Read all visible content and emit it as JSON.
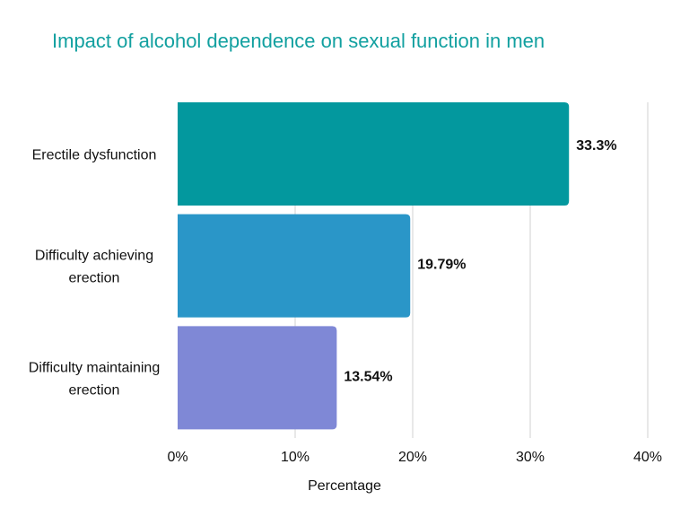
{
  "chart_data": {
    "type": "bar",
    "orientation": "horizontal",
    "title": "Impact of alcohol dependence on sexual function in men",
    "xlabel": "Percentage",
    "ylabel": "",
    "categories": [
      [
        "Erectile dysfunction"
      ],
      [
        "Difficulty achieving",
        "erection"
      ],
      [
        "Difficulty maintaining",
        "erection"
      ]
    ],
    "values": [
      33.3,
      19.79,
      13.54
    ],
    "data_labels": [
      "33.3%",
      "19.79%",
      "13.54%"
    ],
    "colors": [
      "#03989e",
      "#2a96c8",
      "#7f88d6"
    ],
    "xlim": [
      0,
      40
    ],
    "xticks": [
      "0%",
      "10%",
      "20%",
      "30%",
      "40%"
    ],
    "grid": true,
    "legend": "none"
  }
}
